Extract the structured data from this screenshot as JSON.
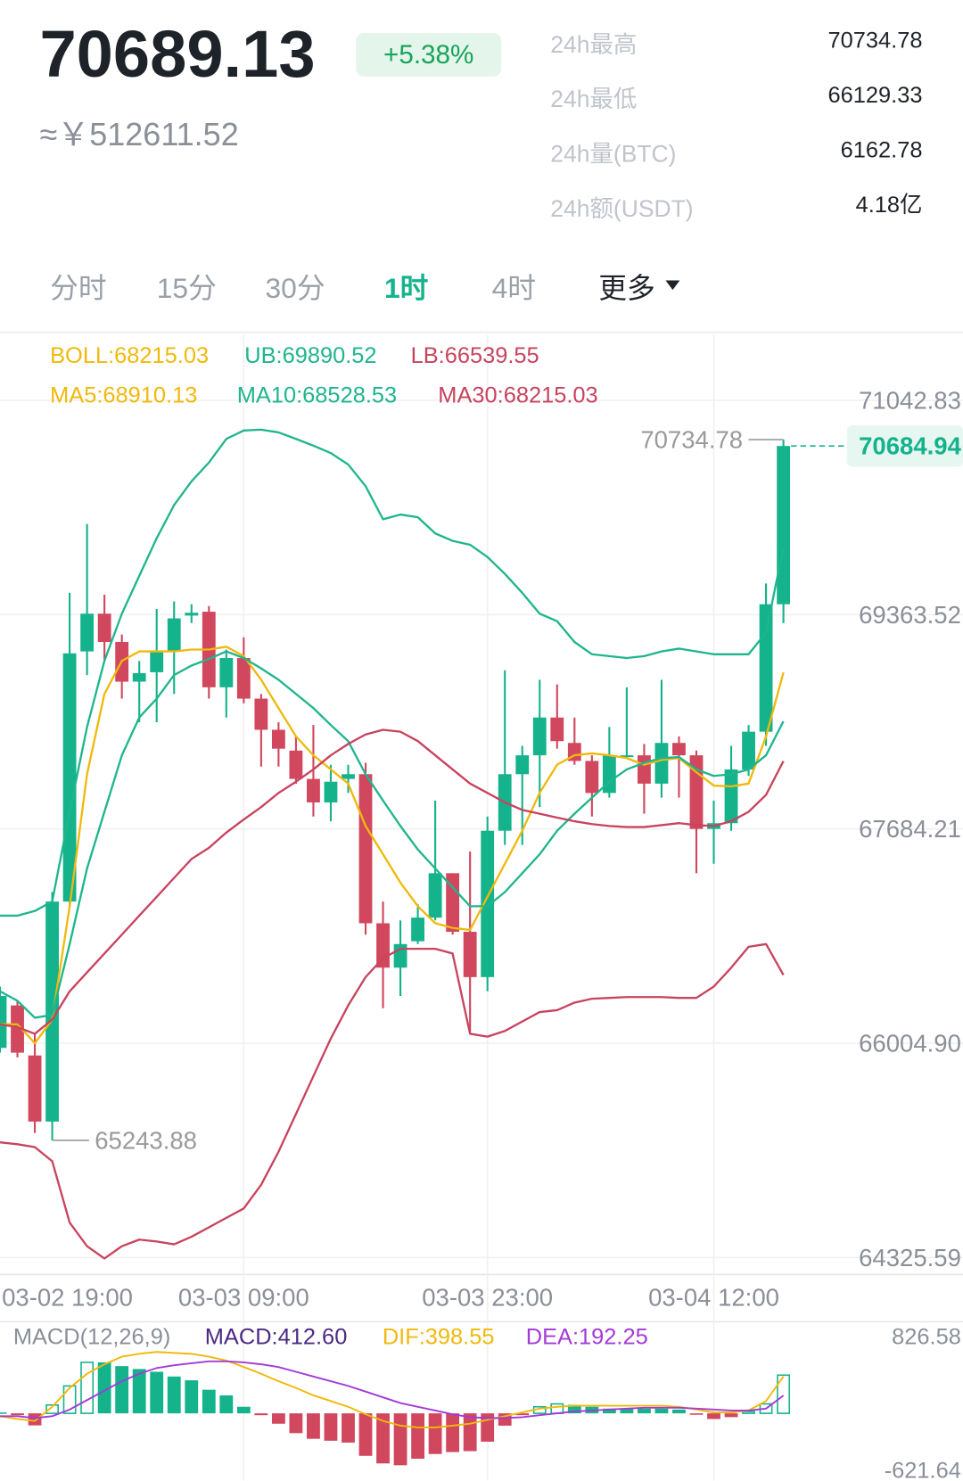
{
  "header": {
    "price": "70689.13",
    "change": "+5.38%",
    "fiat": "≈￥512611.52",
    "stats": [
      {
        "label": "24h最高",
        "value": "70734.78"
      },
      {
        "label": "24h最低",
        "value": "66129.33"
      },
      {
        "label": "24h量(BTC)",
        "value": "6162.78"
      },
      {
        "label": "24h额(USDT)",
        "value": "4.18亿"
      }
    ]
  },
  "tabs": {
    "items": [
      "分时",
      "15分",
      "30分",
      "1时",
      "4时",
      "更多"
    ],
    "active": 3
  },
  "chart_data": {
    "type": "candlestick",
    "up_color": "#14b38c",
    "down_color": "#d1475e",
    "boll_label": {
      "text": "BOLL:68215.03",
      "color": "#f0b90b"
    },
    "categories": [
      "03-02 19:00",
      null,
      null,
      null,
      null,
      null,
      null,
      null,
      null,
      null,
      null,
      null,
      null,
      null,
      "03-03 09:00",
      null,
      null,
      null,
      null,
      null,
      null,
      null,
      null,
      null,
      null,
      null,
      null,
      null,
      "03-03 23:00",
      null,
      null,
      null,
      null,
      null,
      null,
      null,
      null,
      null,
      null,
      null,
      null,
      "03-04 12:00",
      null,
      null,
      null,
      null
    ],
    "open": [
      65968,
      66301,
      65909,
      65391,
      67115,
      69075,
      69371,
      69149,
      68838,
      68912,
      69075,
      69356,
      69386,
      68794,
      69023,
      68705,
      68461,
      68298,
      68076,
      67892,
      68076,
      68113,
      66945,
      66597,
      66804,
      66989,
      67337,
      66878,
      66523,
      67670,
      68113,
      68261,
      68557,
      68358,
      68217,
      67966,
      68247,
      68261,
      68039,
      68358,
      68261,
      67684,
      67729,
      68150,
      68446,
      69445
    ],
    "high": [
      66449,
      66338,
      66079,
      67189,
      69534,
      70074,
      69519,
      69208,
      69001,
      69408,
      69467,
      69445,
      69430,
      69090,
      69186,
      68742,
      68520,
      68409,
      68498,
      68187,
      68187,
      68202,
      67115,
      66967,
      67093,
      67906,
      67337,
      67507,
      67781,
      68927,
      68335,
      68853,
      68816,
      68557,
      68261,
      68483,
      68794,
      68350,
      68853,
      68409,
      68298,
      67906,
      68335,
      68498,
      69608,
      70734.78
    ],
    "low": [
      65931,
      65894,
      65302,
      65243.88,
      67078,
      68890,
      69001,
      68705,
      68520,
      68520,
      68742,
      69297,
      68705,
      68557,
      68668,
      68173,
      68173,
      68039,
      67781,
      67744,
      67966,
      66856,
      66279,
      66375,
      66782,
      66967,
      66856,
      66094,
      66412,
      67559,
      67559,
      67855,
      68313,
      68187,
      67781,
      67929,
      68239,
      67803,
      67929,
      67929,
      67337,
      67411,
      67670,
      68099,
      68335,
      69297
    ],
    "close": [
      66375,
      65931,
      65391,
      67115,
      69060,
      69371,
      69149,
      68838,
      68905,
      69075,
      69334,
      69378,
      68794,
      69023,
      68705,
      68461,
      68313,
      68076,
      67892,
      68054,
      68113,
      66945,
      66597,
      66782,
      66989,
      67337,
      66878,
      66523,
      67670,
      68113,
      68261,
      68557,
      68372,
      68217,
      67966,
      68261,
      68261,
      68039,
      68358,
      68261,
      67684,
      67729,
      68150,
      68446,
      69445,
      70684.94
    ],
    "series": [
      {
        "name": "UB:69890.52",
        "color": "#1fb58d",
        "values": [
          67004,
          67004,
          67041,
          67115,
          67818,
          68483,
          69001,
          69371,
          69667,
          69963,
          70222,
          70407,
          70555,
          70740,
          70806,
          70813,
          70791,
          70740,
          70688,
          70629,
          70540,
          70370,
          70111,
          70148,
          70126,
          70000,
          69941,
          69911,
          69815,
          69682,
          69534,
          69371,
          69312,
          69149,
          69053,
          69038,
          69023,
          69038,
          69075,
          69097,
          69075,
          69053,
          69053,
          69053,
          69223,
          69890.52
        ]
      },
      {
        "name": "LB:66539.55",
        "color": "#c8435e",
        "values": [
          65228,
          65213,
          65191,
          65080,
          64599,
          64414,
          64318,
          64414,
          64466,
          64451,
          64429,
          64488,
          64562,
          64636,
          64710,
          64895,
          65154,
          65450,
          65746,
          66042,
          66301,
          66523,
          66671,
          66745,
          66745,
          66745,
          66708,
          66079,
          66057,
          66101,
          66175,
          66249,
          66264,
          66323,
          66353,
          66360,
          66367,
          66367,
          66367,
          66360,
          66360,
          66449,
          66597,
          66760,
          66782,
          66539.55
        ]
      },
      {
        "name": "MA5:68910.13",
        "color": "#f0b90b",
        "values": [
          66153,
          66153,
          66005,
          66190,
          67078,
          68113,
          68742,
          69001,
          69075,
          69075,
          69075,
          69090,
          69090,
          69112,
          69038,
          68853,
          68631,
          68409,
          68261,
          68150,
          68039,
          67707,
          67485,
          67263,
          67078,
          66945,
          66908,
          66893,
          67152,
          67411,
          67670,
          67966,
          68187,
          68261,
          68276,
          68261,
          68239,
          68187,
          68224,
          68239,
          68128,
          68024,
          68017,
          68039,
          68409,
          68910.13
        ]
      },
      {
        "name": "MA10:68528.53",
        "color": "#1fb58d",
        "values": [
          66412,
          66338,
          66205,
          66227,
          66782,
          67374,
          67818,
          68261,
          68557,
          68705,
          68890,
          68964,
          69016,
          69075,
          69023,
          68942,
          68853,
          68742,
          68631,
          68498,
          68372,
          68113,
          67906,
          67707,
          67522,
          67374,
          67226,
          67078,
          67078,
          67189,
          67337,
          67485,
          67670,
          67803,
          67929,
          68054,
          68150,
          68202,
          68239,
          68247,
          68150,
          68099,
          68113,
          68150,
          68261,
          68528.53
        ]
      },
      {
        "name": "MA30:68215.03",
        "color": "#c8435e",
        "values": [
          66153,
          66131,
          66079,
          66190,
          66412,
          66560,
          66708,
          66856,
          67004,
          67152,
          67300,
          67448,
          67536,
          67655,
          67758,
          67855,
          67966,
          68054,
          68150,
          68261,
          68350,
          68424,
          68461,
          68446,
          68372,
          68261,
          68150,
          68039,
          67966,
          67892,
          67833,
          67803,
          67773,
          67744,
          67722,
          67707,
          67699,
          67699,
          67714,
          67729,
          67714,
          67707,
          67744,
          67818,
          67951,
          68215.03
        ]
      }
    ],
    "ylim": [
      64325.59,
      71042.83
    ],
    "yticks": [
      64325.59,
      {
        "value": 66004.9,
        "label": "66004.90"
      },
      67684.21,
      69363.52,
      71042.83
    ],
    "grid": true,
    "macd": {
      "title": "MACD(12,26,9)",
      "ylim": [
        -621.64,
        826.58
      ],
      "yticks": [
        -621.64,
        826.58
      ],
      "histogram": {
        "name": "MACD:412.60",
        "color": "#4b2a83",
        "values": [
          10,
          -20,
          -130,
          90,
          296,
          551,
          551,
          510,
          479,
          449,
          398,
          357,
          255,
          194,
          71,
          -20,
          -112,
          -214,
          -275,
          -296,
          -316,
          -459,
          -541,
          -561,
          -490,
          -439,
          -418,
          -408,
          -306,
          -133,
          -20,
          71,
          102,
          92,
          71,
          51,
          51,
          51,
          51,
          41,
          -10,
          -61,
          -41,
          20,
          102,
          412.6
        ]
      },
      "series": [
        {
          "name": "DIF:398.55",
          "color": "#f0b90b",
          "values": [
            -31,
            -61,
            -82,
            71,
            275,
            428,
            530,
            612,
            643,
            663,
            653,
            643,
            612,
            571,
            500,
            428,
            347,
            275,
            194,
            133,
            71,
            -10,
            -82,
            -133,
            -153,
            -153,
            -133,
            -112,
            -71,
            -31,
            10,
            51,
            71,
            82,
            82,
            82,
            82,
            82,
            82,
            71,
            41,
            10,
            10,
            31,
            133,
            398.55
          ]
        },
        {
          "name": "DEA:192.25",
          "color": "#a23bd6",
          "values": [
            -31,
            -31,
            -51,
            -31,
            41,
            143,
            245,
            347,
            428,
            490,
            520,
            541,
            561,
            561,
            551,
            530,
            500,
            449,
            398,
            347,
            296,
            235,
            173,
            112,
            71,
            31,
            -10,
            -41,
            -51,
            -51,
            -41,
            -20,
            0,
            20,
            31,
            41,
            51,
            61,
            61,
            61,
            51,
            41,
            31,
            31,
            51,
            192.25
          ]
        }
      ]
    }
  }
}
